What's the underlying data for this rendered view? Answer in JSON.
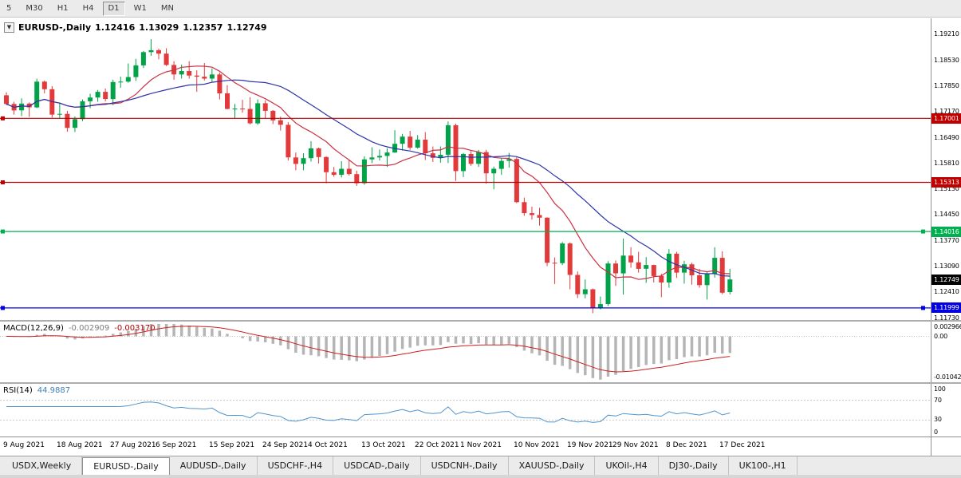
{
  "toolbar": {
    "periods": [
      {
        "label": "5",
        "active": false
      },
      {
        "label": "M30",
        "active": false
      },
      {
        "label": "H1",
        "active": false
      },
      {
        "label": "H4",
        "active": false
      },
      {
        "label": "D1",
        "active": true
      },
      {
        "label": "W1",
        "active": false
      },
      {
        "label": "MN",
        "active": false
      }
    ]
  },
  "chart_header": {
    "collapse_icon": "▼",
    "symbol": "EURUSD-,Daily",
    "open": "1.12416",
    "high": "1.13029",
    "low": "1.12357",
    "close": "1.12749"
  },
  "price_axis": {
    "ticks": [
      "1.19210",
      "1.18530",
      "1.17850",
      "1.17170",
      "1.16490",
      "1.15810",
      "1.15130",
      "1.14450",
      "1.13770",
      "1.13090",
      "1.12410",
      "1.11730"
    ]
  },
  "current_price": {
    "label": "1.12749",
    "bg": "#000000",
    "fg": "#ffffff"
  },
  "hlines": [
    {
      "value": 1.17001,
      "label": "1.17001",
      "color": "#c00000",
      "role": "resistance",
      "handles": "left"
    },
    {
      "value": 1.15313,
      "label": "1.15313",
      "color": "#c00000",
      "role": "resistance",
      "handles": "left"
    },
    {
      "value": 1.14016,
      "label": "1.14016",
      "color": "#00b050",
      "role": "support",
      "handles": "both"
    },
    {
      "value": 1.11999,
      "label": "1.11999",
      "color": "#0000e0",
      "role": "support",
      "handles": "both"
    }
  ],
  "macd": {
    "name": "MACD(12,26,9)",
    "main_value": "-0.002909",
    "signal_value": "-0.003170",
    "axis": [
      "0.002966",
      "0.00",
      "-0.010423"
    ],
    "ylim": [
      -0.010423,
      0.002966
    ],
    "histogram_color": "#b5b5b5",
    "signal_color": "#cc2020"
  },
  "rsi": {
    "name": "RSI(14)",
    "value": "44.9887",
    "axis": [
      "100",
      "70",
      "30",
      "0"
    ],
    "levels": [
      70,
      30
    ],
    "color": "#4f94cd",
    "level_color": "#c9c9c9"
  },
  "tabs": [
    {
      "label": "USDX,Weekly",
      "active": false
    },
    {
      "label": "EURUSD-,Daily",
      "active": true
    },
    {
      "label": "AUDUSD-,Daily",
      "active": false
    },
    {
      "label": "USDCHF-,H4",
      "active": false
    },
    {
      "label": "USDCAD-,Daily",
      "active": false
    },
    {
      "label": "USDCNH-,Daily",
      "active": false
    },
    {
      "label": "XAUUSD-,Daily",
      "active": false
    },
    {
      "label": "UKOil-,H4",
      "active": false
    },
    {
      "label": "DJ30-,Daily",
      "active": false
    },
    {
      "label": "UK100-,H1",
      "active": false
    }
  ],
  "chart_data": {
    "type": "candlestick",
    "symbol": "EURUSD",
    "timeframe": "Daily",
    "ylim": [
      1.1168,
      1.1964
    ],
    "x_labels": [
      "9 Aug 2021",
      "18 Aug 2021",
      "27 Aug 2021",
      "6 Sep 2021",
      "15 Sep 2021",
      "24 Sep 2021",
      "4 Oct 2021",
      "13 Oct 2021",
      "22 Oct 2021",
      "1 Nov 2021",
      "10 Nov 2021",
      "19 Nov 2021",
      "29 Nov 2021",
      "8 Dec 2021",
      "17 Dec 2021"
    ],
    "x_label_bar_indices": [
      0,
      7,
      14,
      20,
      27,
      34,
      40,
      47,
      54,
      60,
      67,
      74,
      80,
      87,
      94
    ],
    "colors": {
      "up": "#00a348",
      "down": "#e23a3a"
    },
    "moving_averages": [
      {
        "type": "sma",
        "period": 10,
        "color": "#cb3043"
      },
      {
        "type": "sma",
        "period": 21,
        "color": "#2b34a8"
      }
    ],
    "candles": [
      [
        1.1761,
        1.1769,
        1.1735,
        1.1738
      ],
      [
        1.1738,
        1.1744,
        1.171,
        1.1721
      ],
      [
        1.1721,
        1.1753,
        1.1706,
        1.1739
      ],
      [
        1.1739,
        1.1742,
        1.1704,
        1.1729
      ],
      [
        1.1729,
        1.1805,
        1.1727,
        1.1797
      ],
      [
        1.1797,
        1.18,
        1.1766,
        1.1777
      ],
      [
        1.1777,
        1.1785,
        1.1702,
        1.171
      ],
      [
        1.171,
        1.1742,
        1.17,
        1.1712
      ],
      [
        1.1712,
        1.172,
        1.1665,
        1.1675
      ],
      [
        1.1675,
        1.1705,
        1.1664,
        1.1698
      ],
      [
        1.1698,
        1.175,
        1.1693,
        1.1745
      ],
      [
        1.1745,
        1.1765,
        1.1727,
        1.1755
      ],
      [
        1.1755,
        1.1775,
        1.1744,
        1.177
      ],
      [
        1.177,
        1.1779,
        1.1745,
        1.1751
      ],
      [
        1.1751,
        1.1802,
        1.1735,
        1.1796
      ],
      [
        1.1796,
        1.181,
        1.1781,
        1.1797
      ],
      [
        1.1797,
        1.1845,
        1.1794,
        1.1809
      ],
      [
        1.1809,
        1.1857,
        1.1799,
        1.184
      ],
      [
        1.184,
        1.1878,
        1.1833,
        1.1875
      ],
      [
        1.1875,
        1.1909,
        1.1865,
        1.188
      ],
      [
        1.188,
        1.1884,
        1.1856,
        1.1871
      ],
      [
        1.1871,
        1.1885,
        1.1838,
        1.1841
      ],
      [
        1.1841,
        1.1851,
        1.1802,
        1.1816
      ],
      [
        1.1816,
        1.1842,
        1.1805,
        1.1825
      ],
      [
        1.1825,
        1.1851,
        1.1805,
        1.1813
      ],
      [
        1.1813,
        1.1827,
        1.177,
        1.181
      ],
      [
        1.181,
        1.1846,
        1.18,
        1.1805
      ],
      [
        1.1805,
        1.1832,
        1.1795,
        1.1816
      ],
      [
        1.1816,
        1.1821,
        1.175,
        1.1766
      ],
      [
        1.1766,
        1.1788,
        1.1724,
        1.1725
      ],
      [
        1.1725,
        1.1738,
        1.17,
        1.1726
      ],
      [
        1.1726,
        1.1749,
        1.1715,
        1.1725
      ],
      [
        1.1725,
        1.1756,
        1.1684,
        1.1687
      ],
      [
        1.1687,
        1.175,
        1.1683,
        1.174
      ],
      [
        1.174,
        1.1748,
        1.1701,
        1.172
      ],
      [
        1.172,
        1.1722,
        1.1685,
        1.1695
      ],
      [
        1.1695,
        1.1705,
        1.1668,
        1.1683
      ],
      [
        1.1683,
        1.169,
        1.1589,
        1.1597
      ],
      [
        1.1597,
        1.161,
        1.1563,
        1.158
      ],
      [
        1.158,
        1.1608,
        1.1563,
        1.1595
      ],
      [
        1.1595,
        1.164,
        1.1586,
        1.1621
      ],
      [
        1.1621,
        1.1623,
        1.1581,
        1.1598
      ],
      [
        1.1598,
        1.16,
        1.1529,
        1.1558
      ],
      [
        1.1558,
        1.1572,
        1.1546,
        1.1551
      ],
      [
        1.1551,
        1.1587,
        1.1544,
        1.1567
      ],
      [
        1.1567,
        1.1591,
        1.1549,
        1.1553
      ],
      [
        1.1553,
        1.1562,
        1.1522,
        1.1529
      ],
      [
        1.1529,
        1.16,
        1.1525,
        1.1592
      ],
      [
        1.1592,
        1.1624,
        1.1582,
        1.1597
      ],
      [
        1.1597,
        1.1618,
        1.1589,
        1.1601
      ],
      [
        1.1601,
        1.1621,
        1.1572,
        1.161
      ],
      [
        1.161,
        1.1669,
        1.1609,
        1.1633
      ],
      [
        1.1633,
        1.1659,
        1.1615,
        1.1652
      ],
      [
        1.1652,
        1.1667,
        1.1617,
        1.1623
      ],
      [
        1.1623,
        1.1656,
        1.162,
        1.1644
      ],
      [
        1.1644,
        1.1664,
        1.159,
        1.1608
      ],
      [
        1.1608,
        1.1626,
        1.1585,
        1.1596
      ],
      [
        1.1596,
        1.1626,
        1.1583,
        1.1604
      ],
      [
        1.1604,
        1.1692,
        1.1582,
        1.1682
      ],
      [
        1.1682,
        1.1686,
        1.1535,
        1.1561
      ],
      [
        1.1561,
        1.1609,
        1.1545,
        1.1606
      ],
      [
        1.1606,
        1.1614,
        1.1575,
        1.158
      ],
      [
        1.158,
        1.1617,
        1.1572,
        1.1611
      ],
      [
        1.1611,
        1.1617,
        1.1528,
        1.1555
      ],
      [
        1.1555,
        1.1573,
        1.1513,
        1.1567
      ],
      [
        1.1567,
        1.1595,
        1.1551,
        1.1588
      ],
      [
        1.1588,
        1.1609,
        1.157,
        1.1593
      ],
      [
        1.1593,
        1.1598,
        1.1476,
        1.1479
      ],
      [
        1.1479,
        1.1491,
        1.1443,
        1.145
      ],
      [
        1.145,
        1.1467,
        1.1433,
        1.1445
      ],
      [
        1.1445,
        1.1464,
        1.1417,
        1.1438
      ],
      [
        1.1438,
        1.1439,
        1.131,
        1.1319
      ],
      [
        1.1319,
        1.1333,
        1.1263,
        1.1318
      ],
      [
        1.1318,
        1.1374,
        1.1313,
        1.137
      ],
      [
        1.137,
        1.1373,
        1.1249,
        1.1287
      ],
      [
        1.1287,
        1.1296,
        1.1226,
        1.1236
      ],
      [
        1.1236,
        1.1275,
        1.1225,
        1.1249
      ],
      [
        1.1249,
        1.1251,
        1.1186,
        1.1199
      ],
      [
        1.1199,
        1.123,
        1.1196,
        1.121
      ],
      [
        1.121,
        1.1323,
        1.1205,
        1.1317
      ],
      [
        1.1317,
        1.1325,
        1.1258,
        1.1291
      ],
      [
        1.1291,
        1.1383,
        1.1235,
        1.1338
      ],
      [
        1.1338,
        1.136,
        1.1306,
        1.132
      ],
      [
        1.132,
        1.1348,
        1.1293,
        1.1303
      ],
      [
        1.1303,
        1.1334,
        1.1266,
        1.1313
      ],
      [
        1.1313,
        1.1314,
        1.1267,
        1.1284
      ],
      [
        1.1284,
        1.129,
        1.1228,
        1.1267
      ],
      [
        1.1267,
        1.1355,
        1.1253,
        1.1343
      ],
      [
        1.1343,
        1.1348,
        1.1279,
        1.1293
      ],
      [
        1.1293,
        1.1324,
        1.1264,
        1.1315
      ],
      [
        1.1315,
        1.1319,
        1.1261,
        1.1286
      ],
      [
        1.1286,
        1.1303,
        1.1253,
        1.126
      ],
      [
        1.126,
        1.1296,
        1.1222,
        1.129
      ],
      [
        1.129,
        1.136,
        1.128,
        1.1332
      ],
      [
        1.1332,
        1.1349,
        1.1236,
        1.124
      ],
      [
        1.12416,
        1.13029,
        1.12357,
        1.12749
      ]
    ]
  }
}
